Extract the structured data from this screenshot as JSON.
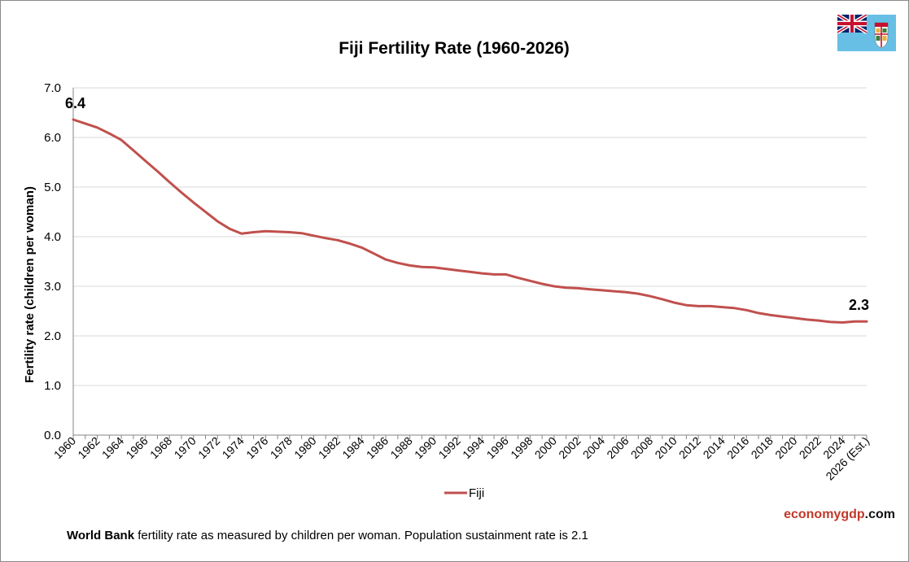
{
  "chart_data": {
    "type": "line",
    "title": "Fiji Fertility Rate (1960-2026)",
    "xlabel": "",
    "ylabel": "Fertility rate (children per woman)",
    "ylim": [
      0,
      7
    ],
    "yticks": [
      "0.0",
      "1.0",
      "2.0",
      "3.0",
      "4.0",
      "5.0",
      "6.0",
      "7.0"
    ],
    "grid": true,
    "legend_position": "bottom-center",
    "categories": [
      "1960",
      "1961",
      "1962",
      "1963",
      "1964",
      "1965",
      "1966",
      "1967",
      "1968",
      "1969",
      "1970",
      "1971",
      "1972",
      "1973",
      "1974",
      "1975",
      "1976",
      "1977",
      "1978",
      "1979",
      "1980",
      "1981",
      "1982",
      "1983",
      "1984",
      "1985",
      "1986",
      "1987",
      "1988",
      "1989",
      "1990",
      "1991",
      "1992",
      "1993",
      "1994",
      "1995",
      "1996",
      "1997",
      "1998",
      "1999",
      "2000",
      "2001",
      "2002",
      "2003",
      "2004",
      "2005",
      "2006",
      "2007",
      "2008",
      "2009",
      "2010",
      "2011",
      "2012",
      "2013",
      "2014",
      "2015",
      "2016",
      "2017",
      "2018",
      "2019",
      "2020",
      "2021",
      "2022",
      "2023",
      "2024",
      "2025",
      "2026 (Est.)"
    ],
    "series": [
      {
        "name": "Fiji",
        "color": "#c0504d",
        "values": [
          6.36,
          6.28,
          6.2,
          6.08,
          5.95,
          5.74,
          5.53,
          5.32,
          5.1,
          4.89,
          4.69,
          4.5,
          4.31,
          4.16,
          4.06,
          4.09,
          4.11,
          4.1,
          4.09,
          4.07,
          4.02,
          3.97,
          3.93,
          3.86,
          3.78,
          3.66,
          3.54,
          3.47,
          3.42,
          3.39,
          3.38,
          3.35,
          3.32,
          3.29,
          3.26,
          3.24,
          3.24,
          3.17,
          3.11,
          3.05,
          3.0,
          2.97,
          2.96,
          2.94,
          2.92,
          2.9,
          2.88,
          2.85,
          2.8,
          2.74,
          2.67,
          2.62,
          2.6,
          2.6,
          2.58,
          2.56,
          2.52,
          2.46,
          2.42,
          2.39,
          2.36,
          2.33,
          2.31,
          2.28,
          2.27,
          2.29,
          2.29
        ]
      }
    ],
    "annotations": {
      "start": "6.4",
      "end": "2.3"
    }
  },
  "footer": {
    "brand_part1": "economy",
    "brand_part2": "gdp",
    "brand_part3": ".com",
    "source_bold": "World Bank",
    "source_text": " fertility rate as measured by children per woman.  Population sustainment rate is 2.1"
  },
  "flag": {
    "name": "fiji-flag-icon",
    "field_color": "#68bfe5"
  }
}
